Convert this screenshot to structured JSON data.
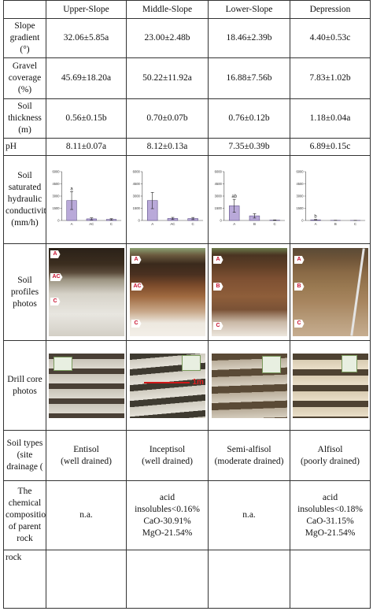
{
  "columns": [
    "",
    "Upper-Slope",
    "Middle-Slope",
    "Lower-Slope",
    "Depression"
  ],
  "rows": {
    "slope_gradient": {
      "label": "Slope gradient (°)",
      "values": [
        "32.06±5.85a",
        "23.00±2.48b",
        "18.46±2.39b",
        "4.40±0.53c"
      ]
    },
    "gravel_coverage": {
      "label": "Gravel coverage (%)",
      "values": [
        "45.69±18.20a",
        "50.22±11.92a",
        "16.88±7.56b",
        "7.83±1.02b"
      ]
    },
    "soil_thickness": {
      "label": "Soil thickness (m)",
      "values": [
        "0.56±0.15b",
        "0.70±0.07b",
        "0.76±0.12b",
        "1.18±0.04a"
      ]
    },
    "ph": {
      "label": "pH",
      "values": [
        "8.11±0.07a",
        "8.12±0.13a",
        "7.35±0.39b",
        "6.89±0.15c"
      ]
    },
    "ksat": {
      "label": "Soil saturated hydraulic conductivity (mm/h)"
    },
    "profiles": {
      "label": "Soil profiles photos"
    },
    "cores": {
      "label": "Drill core photos",
      "arrow_label": "1m"
    },
    "soil_types": {
      "label": "Soil types (site drainage (",
      "values": [
        {
          "type": "Entisol",
          "drainage": "(well drained)"
        },
        {
          "type": "Inceptisol",
          "drainage": "(well drained)"
        },
        {
          "type": "Semi-alfisol",
          "drainage": "(moderate drained)"
        },
        {
          "type": "Alfisol",
          "drainage": "(poorly drained)"
        }
      ]
    },
    "chemistry": {
      "label": "The chemical composition of parent rock",
      "values": [
        [
          "n.a."
        ],
        [
          "acid insolubles<0.16%",
          "CaO-30.91%",
          "MgO-21.54%"
        ],
        [
          "n.a."
        ],
        [
          "acid insolubles<0.18%",
          "CaO-31.15%",
          "MgO-21.54%"
        ]
      ]
    },
    "rock": {
      "label": "rock"
    }
  },
  "profile_horizons": [
    [
      "A",
      "AC",
      "C"
    ],
    [
      "A",
      "AC",
      "C"
    ],
    [
      "A",
      "B",
      "C"
    ],
    [
      "A",
      "B",
      "C"
    ]
  ],
  "colors": {
    "bar_fill": "#b9a9d9",
    "bar_stroke": "#4b3d78",
    "horizon_label": "#c8102e"
  },
  "chart_data": [
    {
      "type": "bar",
      "title": "Upper-Slope",
      "categories": [
        "A",
        "AC",
        "C"
      ],
      "values": [
        2450,
        200,
        130
      ],
      "errors": [
        1100,
        120,
        90
      ],
      "letters": [
        "a",
        "",
        ""
      ],
      "ylim": [
        0,
        6000
      ],
      "yticks": [
        0,
        1500,
        3000,
        4500,
        6000
      ]
    },
    {
      "type": "bar",
      "title": "Middle-Slope",
      "categories": [
        "A",
        "AC",
        "C"
      ],
      "values": [
        2450,
        250,
        240
      ],
      "errors": [
        1000,
        130,
        130
      ],
      "letters": [
        "",
        "",
        ""
      ],
      "ylim": [
        0,
        6000
      ],
      "yticks": [
        0,
        1500,
        3000,
        4500,
        6000
      ]
    },
    {
      "type": "bar",
      "title": "Lower-Slope",
      "categories": [
        "A",
        "B",
        "C"
      ],
      "values": [
        1800,
        570,
        40
      ],
      "errors": [
        800,
        270,
        30
      ],
      "letters": [
        "ab",
        "",
        ""
      ],
      "ylim": [
        0,
        6000
      ],
      "yticks": [
        0,
        1500,
        3000,
        4500,
        6000
      ]
    },
    {
      "type": "bar",
      "title": "Depression",
      "categories": [
        "A",
        "B",
        "C"
      ],
      "values": [
        80,
        20,
        10
      ],
      "errors": [
        40,
        10,
        5
      ],
      "letters": [
        "b",
        "",
        ""
      ],
      "ylim": [
        0,
        6000
      ],
      "yticks": [
        0,
        1500,
        3000,
        4500,
        6000
      ]
    }
  ]
}
